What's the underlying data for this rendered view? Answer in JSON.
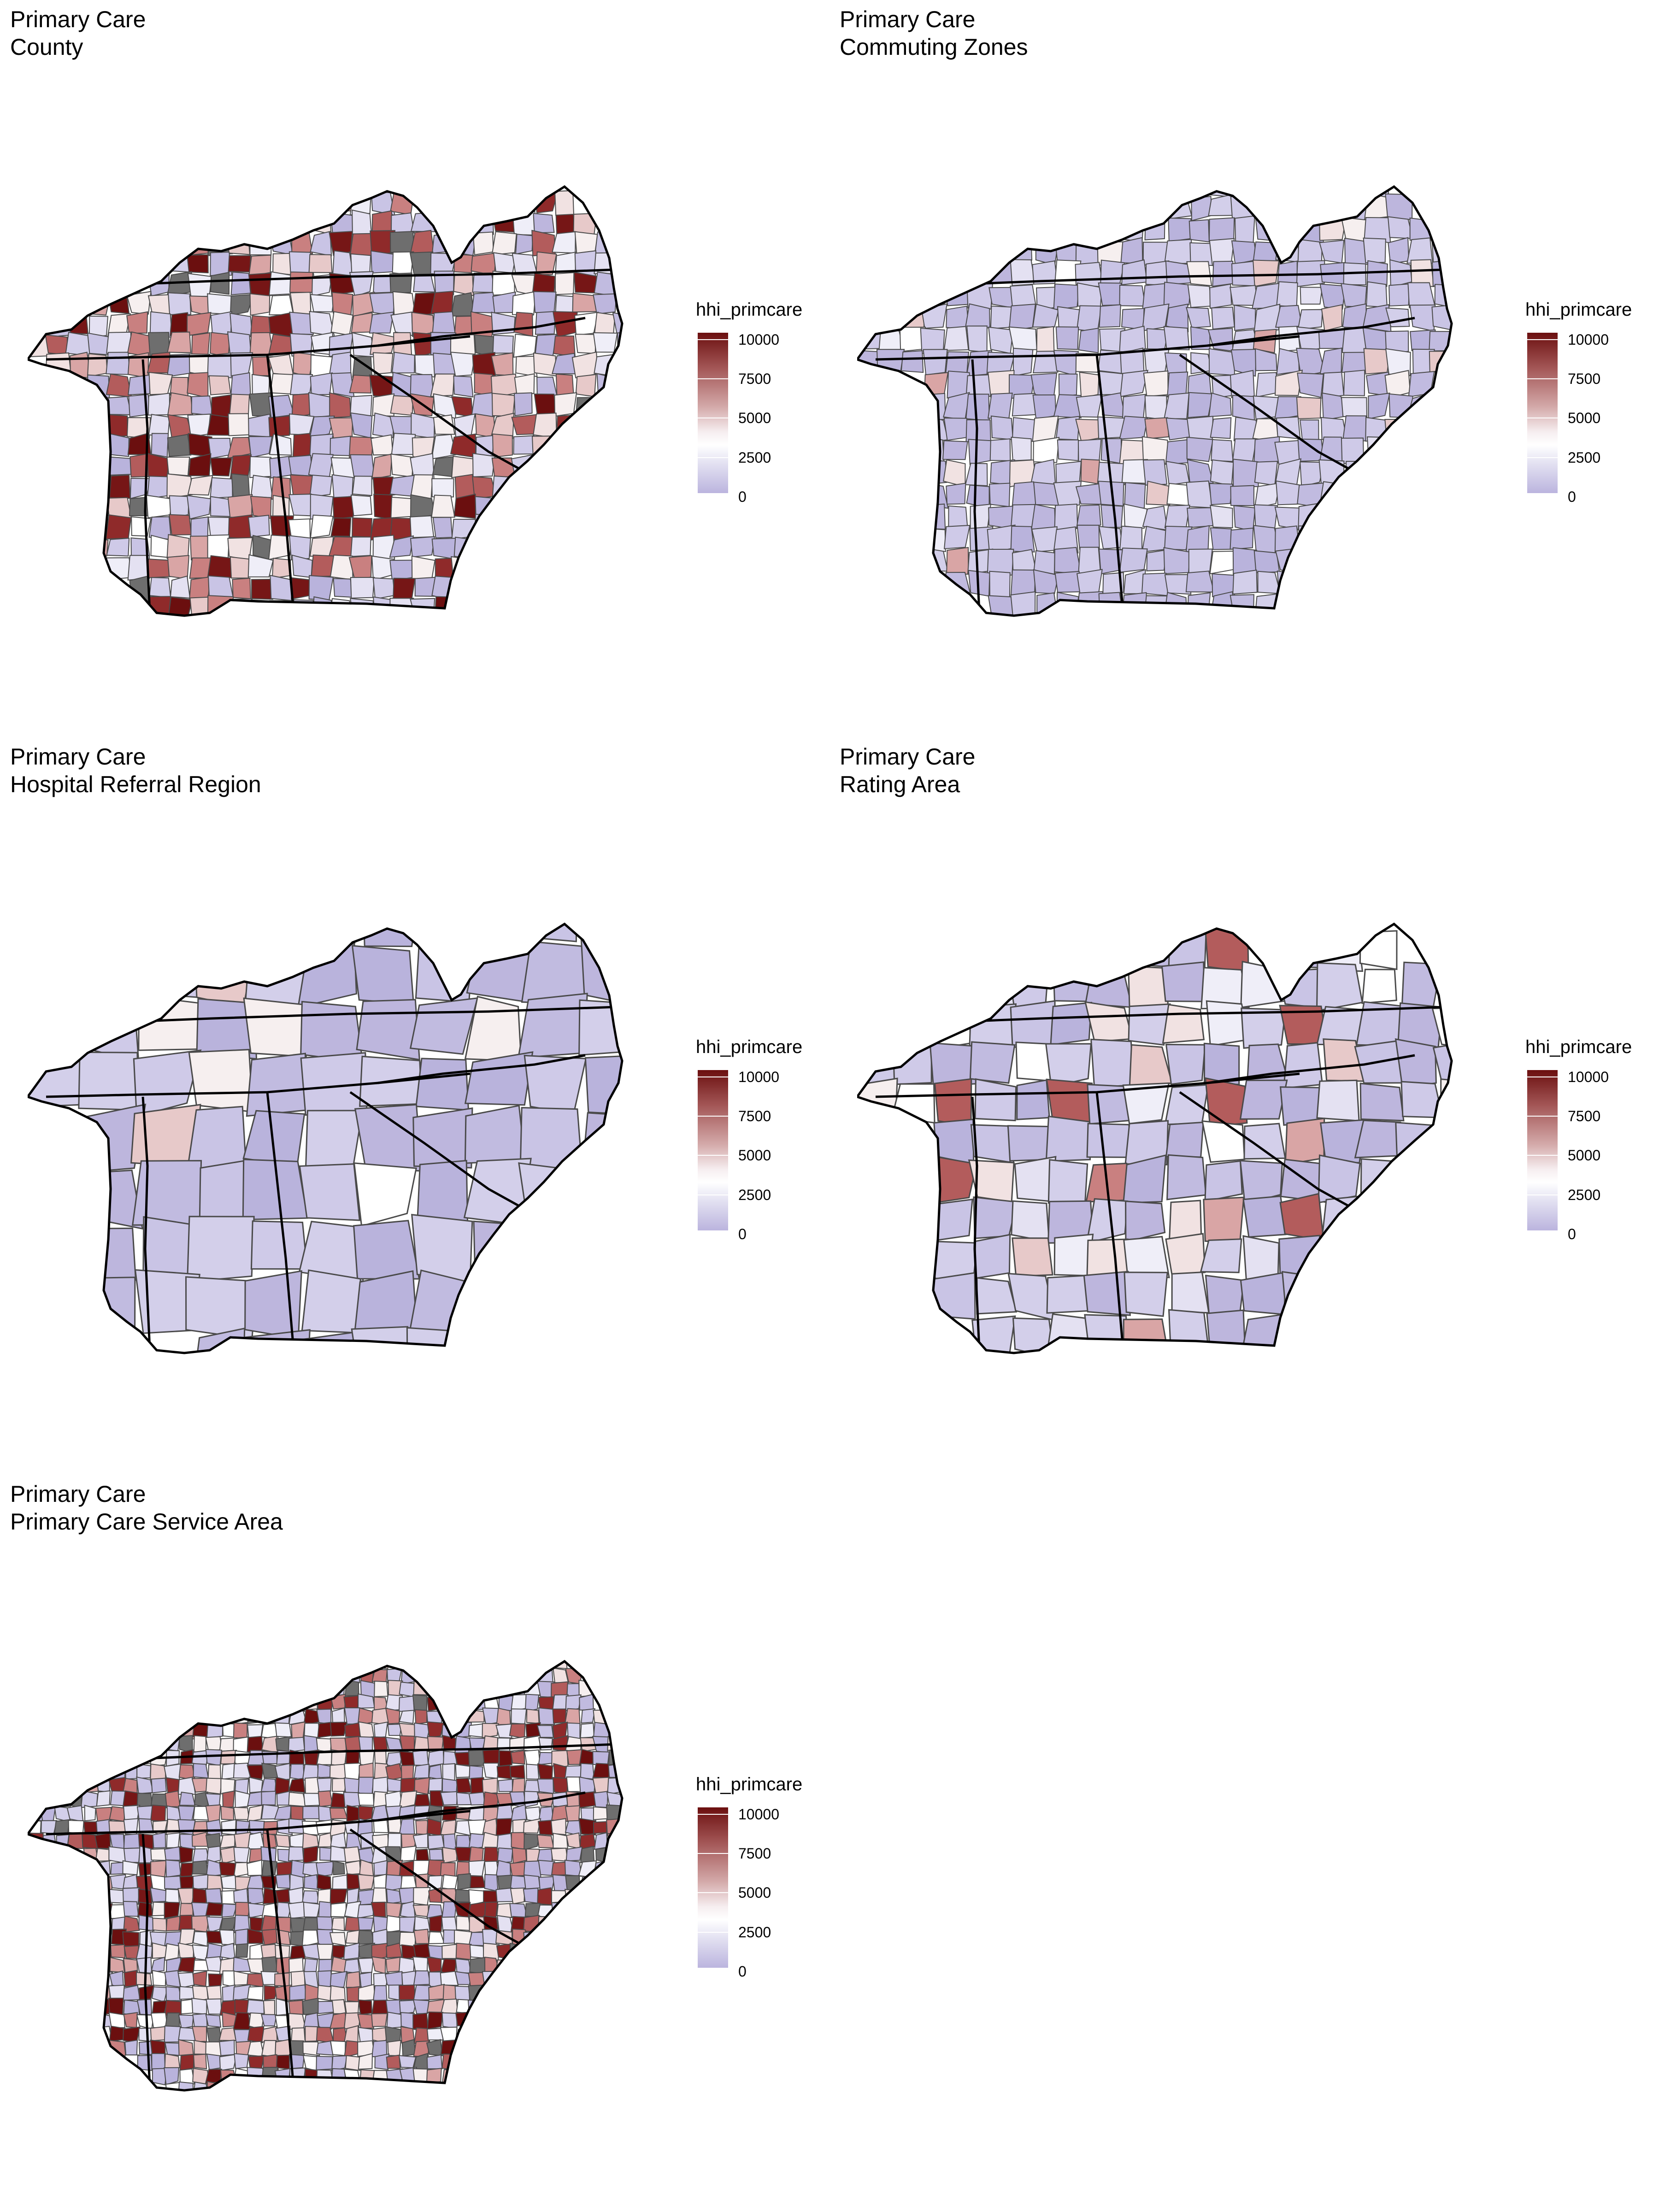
{
  "panels": [
    {
      "line1": "Primary Care",
      "line2": "County",
      "palette": "mixed"
    },
    {
      "line1": "Primary Care",
      "line2": "Commuting Zones",
      "palette": "cool"
    },
    {
      "line1": "Primary Care",
      "line2": "Hospital Referral Region",
      "palette": "cool"
    },
    {
      "line1": "Primary Care",
      "line2": "Rating Area",
      "palette": "cool-warm"
    },
    {
      "line1": "Primary Care",
      "line2": "Primary Care Service Area",
      "palette": "mixed"
    }
  ],
  "legend": {
    "title": "hhi_primcare",
    "ticks": [
      "10000",
      "7500",
      "5000",
      "2500",
      "0"
    ],
    "high_color": "#6b0f0f",
    "mid_color": "#ffffff",
    "low_color": "#bbb4de"
  }
}
